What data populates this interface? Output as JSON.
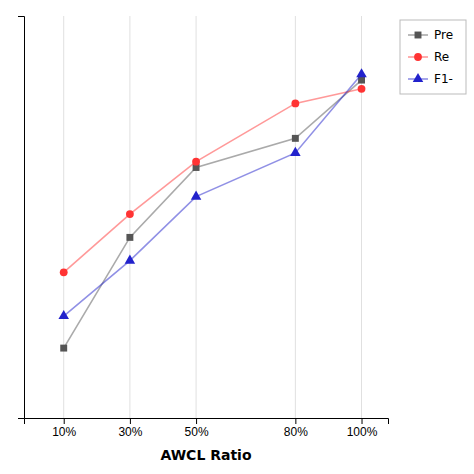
{
  "chart_data": {
    "type": "line",
    "x_label": "AWCL Ratio",
    "x": [
      10,
      30,
      50,
      80,
      100
    ],
    "series": [
      {
        "name": "Pre",
        "color": "#555555",
        "marker": "square",
        "values": [
          0.3,
          0.49,
          0.61,
          0.66,
          0.76
        ]
      },
      {
        "name": "Re",
        "color": "#ff3333",
        "marker": "circle",
        "values": [
          0.43,
          0.53,
          0.62,
          0.72,
          0.745
        ]
      },
      {
        "name": "F1-",
        "color": "#2222cc",
        "marker": "triangle",
        "values": [
          0.355,
          0.45,
          0.56,
          0.635,
          0.77
        ]
      }
    ],
    "xlim": [
      -2,
      108
    ],
    "xticks": [
      {
        "value": 10,
        "label": "10%"
      },
      {
        "value": 30,
        "label": "30%"
      },
      {
        "value": 50,
        "label": "50%"
      },
      {
        "value": 80,
        "label": "80%"
      },
      {
        "value": 100,
        "label": "100%"
      }
    ],
    "ylim": [
      0.18,
      0.87
    ],
    "tick_labels": "x",
    "grid": true,
    "legend": "right"
  }
}
